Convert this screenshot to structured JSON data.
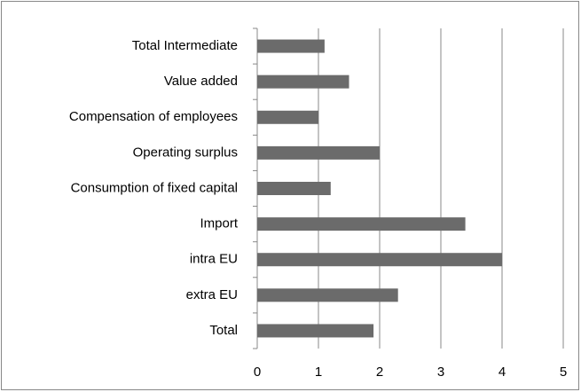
{
  "chart_data": {
    "type": "bar",
    "orientation": "horizontal",
    "categories": [
      "Total Intermediate",
      "Value added",
      "Compensation of employees",
      "Operating surplus",
      "Consumption of fixed capital",
      "Import",
      "intra EU",
      "extra EU",
      "Total"
    ],
    "values": [
      1.1,
      1.5,
      1.0,
      2.0,
      1.2,
      3.4,
      4.0,
      2.3,
      1.9
    ],
    "color": "#6b6b6b",
    "xlim": [
      0,
      5
    ],
    "xticks": [
      0,
      1,
      2,
      3,
      4,
      5
    ],
    "grid": true
  }
}
